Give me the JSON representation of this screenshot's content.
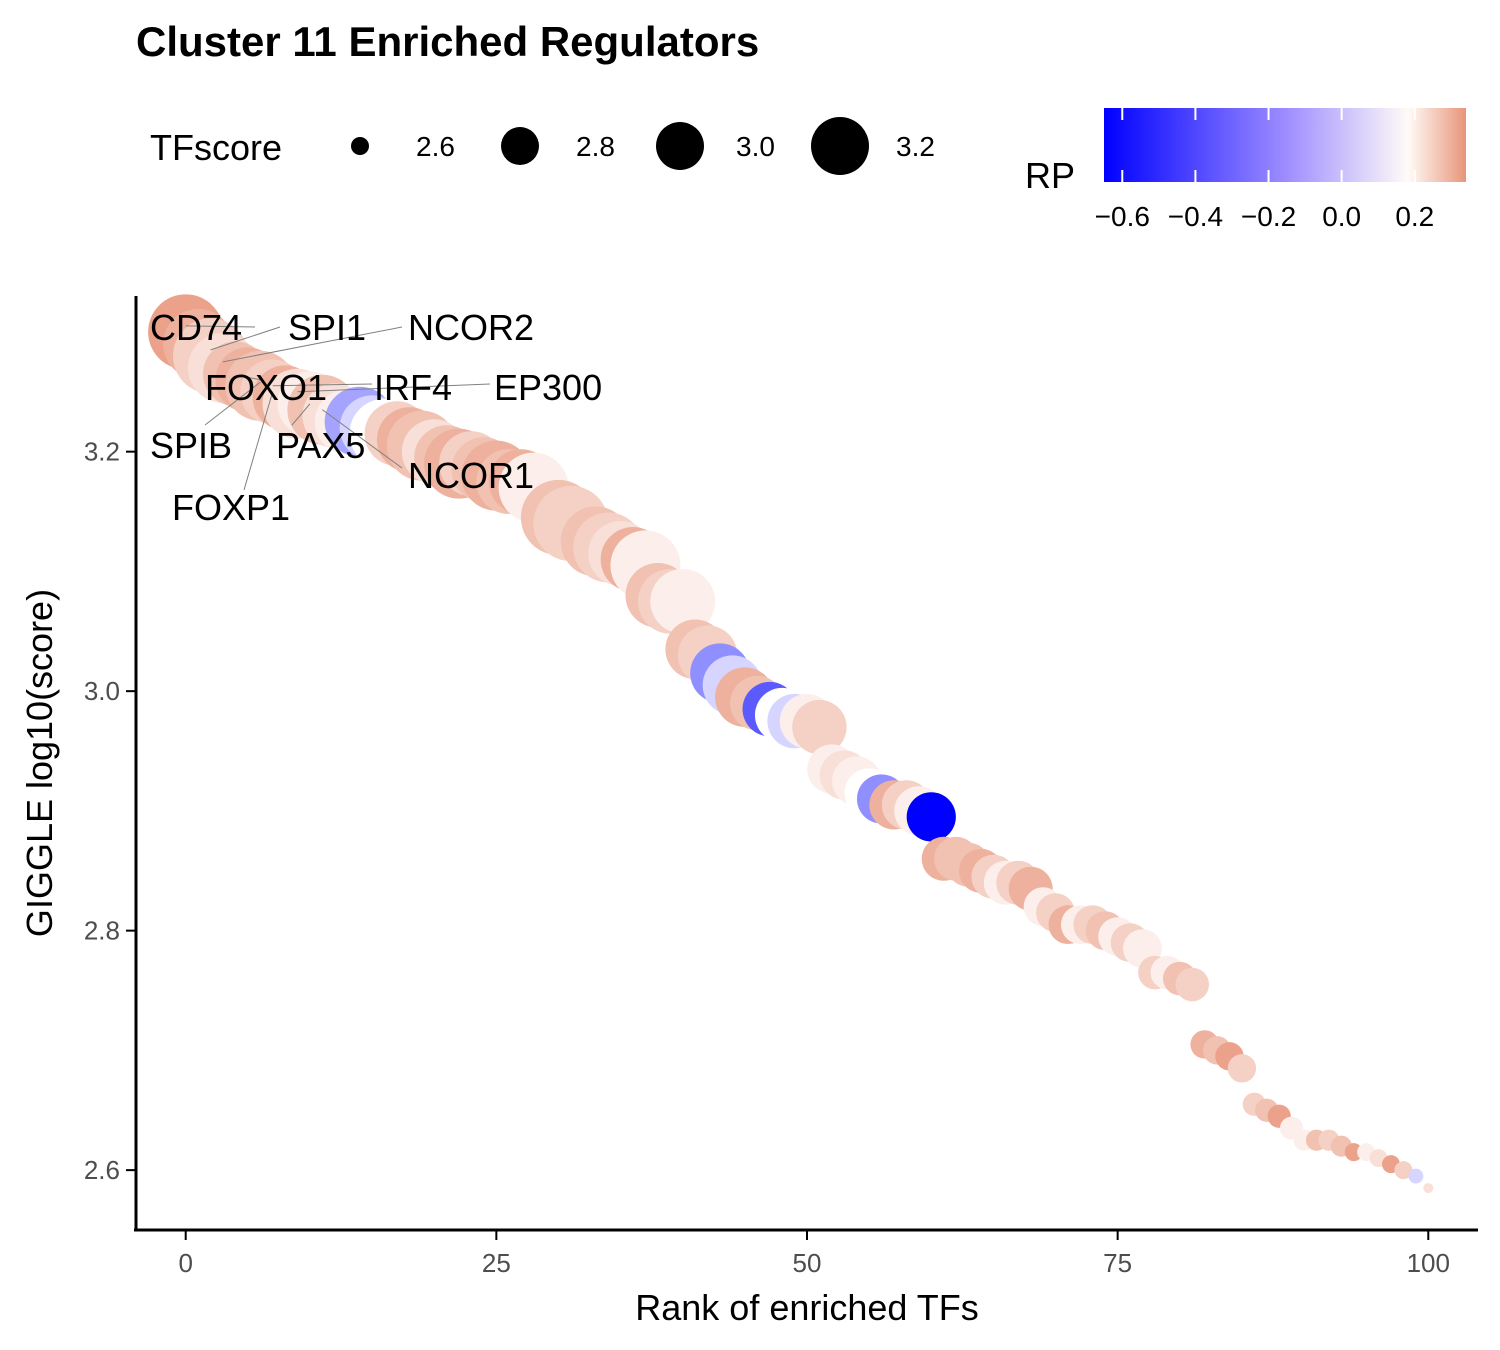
{
  "chart_data": {
    "type": "scatter",
    "title": "Cluster 11 Enriched Regulators",
    "xlabel": "Rank of enriched TFs",
    "ylabel": "GIGGLE log10(score)",
    "xlim": [
      -4,
      104
    ],
    "ylim": [
      2.55,
      3.33
    ],
    "xticks": [
      0,
      25,
      50,
      75,
      100
    ],
    "xtick_labels": [
      "0",
      "25",
      "50",
      "75",
      "100"
    ],
    "yticks": [
      2.6,
      2.8,
      3.0,
      3.2
    ],
    "ytick_labels": [
      "2.6",
      "2.8",
      "3.0",
      "3.2"
    ],
    "grid": false,
    "size_legend": {
      "title": "TFscore",
      "values": [
        2.6,
        2.8,
        3.0,
        3.2
      ],
      "labels": [
        "2.6",
        "2.8",
        "3.0",
        "3.2"
      ]
    },
    "color_legend": {
      "title": "RP",
      "range": [
        -0.65,
        0.34
      ],
      "ticks": [
        -0.6,
        -0.4,
        -0.2,
        0.0,
        0.2
      ],
      "tick_labels": [
        "−0.6",
        "−0.4",
        "−0.2",
        "0.0",
        "0.2"
      ],
      "low_color": "#0000ff",
      "mid_color": "#ffffff",
      "high_color": "#e8957a"
    },
    "points": [
      {
        "x": 0,
        "y": 3.3,
        "size": 3.1,
        "rp": 0.3
      },
      {
        "x": 1,
        "y": 3.29,
        "size": 3.05,
        "rp": 0.25
      },
      {
        "x": 2,
        "y": 3.28,
        "size": 3.1,
        "rp": 0.15
      },
      {
        "x": 3,
        "y": 3.27,
        "size": 3.05,
        "rp": 0.1
      },
      {
        "x": 4,
        "y": 3.265,
        "size": 3.0,
        "rp": 0.2
      },
      {
        "x": 5,
        "y": 3.26,
        "size": 3.0,
        "rp": 0.25
      },
      {
        "x": 6,
        "y": 3.255,
        "size": 3.05,
        "rp": 0.2
      },
      {
        "x": 7,
        "y": 3.25,
        "size": 3.0,
        "rp": 0.15
      },
      {
        "x": 8,
        "y": 3.245,
        "size": 3.0,
        "rp": 0.25
      },
      {
        "x": 9,
        "y": 3.24,
        "size": 3.05,
        "rp": 0.1
      },
      {
        "x": 10,
        "y": 3.24,
        "size": 3.0,
        "rp": 0.05
      },
      {
        "x": 11,
        "y": 3.235,
        "size": 3.05,
        "rp": 0.2
      },
      {
        "x": 12,
        "y": 3.23,
        "size": 3.0,
        "rp": 0.1
      },
      {
        "x": 13,
        "y": 3.225,
        "size": 3.0,
        "rp": 0.05
      },
      {
        "x": 14,
        "y": 3.225,
        "size": 3.05,
        "rp": -0.15
      },
      {
        "x": 15,
        "y": 3.22,
        "size": 3.0,
        "rp": -0.05
      },
      {
        "x": 16,
        "y": 3.215,
        "size": 3.05,
        "rp": 0.0
      },
      {
        "x": 17,
        "y": 3.215,
        "size": 3.0,
        "rp": 0.15
      },
      {
        "x": 18,
        "y": 3.21,
        "size": 3.0,
        "rp": 0.25
      },
      {
        "x": 19,
        "y": 3.205,
        "size": 3.05,
        "rp": 0.2
      },
      {
        "x": 20,
        "y": 3.2,
        "size": 3.0,
        "rp": 0.1
      },
      {
        "x": 21,
        "y": 3.195,
        "size": 3.0,
        "rp": 0.2
      },
      {
        "x": 22,
        "y": 3.19,
        "size": 3.05,
        "rp": 0.25
      },
      {
        "x": 23,
        "y": 3.19,
        "size": 3.0,
        "rp": 0.15
      },
      {
        "x": 24,
        "y": 3.185,
        "size": 3.0,
        "rp": 0.2
      },
      {
        "x": 25,
        "y": 3.18,
        "size": 3.05,
        "rp": 0.25
      },
      {
        "x": 26,
        "y": 3.175,
        "size": 3.0,
        "rp": 0.2
      },
      {
        "x": 27,
        "y": 3.175,
        "size": 3.0,
        "rp": 0.25
      },
      {
        "x": 28,
        "y": 3.17,
        "size": 3.05,
        "rp": 0.05
      },
      {
        "x": 30,
        "y": 3.145,
        "size": 3.1,
        "rp": 0.2
      },
      {
        "x": 31,
        "y": 3.14,
        "size": 3.1,
        "rp": 0.15
      },
      {
        "x": 33,
        "y": 3.125,
        "size": 3.05,
        "rp": 0.2
      },
      {
        "x": 34,
        "y": 3.12,
        "size": 3.05,
        "rp": 0.15
      },
      {
        "x": 35,
        "y": 3.115,
        "size": 3.0,
        "rp": 0.1
      },
      {
        "x": 36,
        "y": 3.11,
        "size": 3.0,
        "rp": 0.25
      },
      {
        "x": 37,
        "y": 3.105,
        "size": 3.05,
        "rp": 0.05
      },
      {
        "x": 38,
        "y": 3.08,
        "size": 3.0,
        "rp": 0.2
      },
      {
        "x": 39,
        "y": 3.075,
        "size": 3.0,
        "rp": 0.15
      },
      {
        "x": 40,
        "y": 3.075,
        "size": 3.0,
        "rp": 0.05
      },
      {
        "x": 41,
        "y": 3.035,
        "size": 2.95,
        "rp": 0.2
      },
      {
        "x": 42,
        "y": 3.03,
        "size": 2.95,
        "rp": 0.15
      },
      {
        "x": 43,
        "y": 3.015,
        "size": 2.95,
        "rp": -0.2
      },
      {
        "x": 44,
        "y": 3.005,
        "size": 2.95,
        "rp": -0.05
      },
      {
        "x": 45,
        "y": 2.995,
        "size": 2.95,
        "rp": 0.25
      },
      {
        "x": 46,
        "y": 2.99,
        "size": 2.9,
        "rp": 0.2
      },
      {
        "x": 47,
        "y": 2.985,
        "size": 2.9,
        "rp": -0.35
      },
      {
        "x": 48,
        "y": 2.98,
        "size": 2.9,
        "rp": 0.0
      },
      {
        "x": 49,
        "y": 2.975,
        "size": 2.9,
        "rp": -0.05
      },
      {
        "x": 50,
        "y": 2.975,
        "size": 2.9,
        "rp": 0.05
      },
      {
        "x": 51,
        "y": 2.97,
        "size": 2.9,
        "rp": 0.15
      },
      {
        "x": 52,
        "y": 2.935,
        "size": 2.85,
        "rp": 0.05
      },
      {
        "x": 53,
        "y": 2.93,
        "size": 2.85,
        "rp": 0.1
      },
      {
        "x": 54,
        "y": 2.925,
        "size": 2.85,
        "rp": 0.05
      },
      {
        "x": 55,
        "y": 2.915,
        "size": 2.85,
        "rp": 0.0
      },
      {
        "x": 56,
        "y": 2.91,
        "size": 2.85,
        "rp": -0.2
      },
      {
        "x": 57,
        "y": 2.905,
        "size": 2.85,
        "rp": 0.25
      },
      {
        "x": 58,
        "y": 2.905,
        "size": 2.85,
        "rp": 0.15
      },
      {
        "x": 59,
        "y": 2.9,
        "size": 2.85,
        "rp": 0.05
      },
      {
        "x": 60,
        "y": 2.895,
        "size": 2.85,
        "rp": -0.65
      },
      {
        "x": 61,
        "y": 2.86,
        "size": 2.8,
        "rp": 0.25
      },
      {
        "x": 62,
        "y": 2.86,
        "size": 2.8,
        "rp": 0.2
      },
      {
        "x": 63,
        "y": 2.855,
        "size": 2.8,
        "rp": 0.2
      },
      {
        "x": 64,
        "y": 2.85,
        "size": 2.8,
        "rp": 0.25
      },
      {
        "x": 65,
        "y": 2.845,
        "size": 2.8,
        "rp": 0.15
      },
      {
        "x": 66,
        "y": 2.84,
        "size": 2.8,
        "rp": 0.05
      },
      {
        "x": 67,
        "y": 2.84,
        "size": 2.8,
        "rp": 0.15
      },
      {
        "x": 68,
        "y": 2.835,
        "size": 2.8,
        "rp": 0.25
      },
      {
        "x": 69,
        "y": 2.82,
        "size": 2.75,
        "rp": 0.05
      },
      {
        "x": 70,
        "y": 2.815,
        "size": 2.75,
        "rp": 0.15
      },
      {
        "x": 71,
        "y": 2.805,
        "size": 2.75,
        "rp": 0.25
      },
      {
        "x": 72,
        "y": 2.805,
        "size": 2.75,
        "rp": 0.05
      },
      {
        "x": 73,
        "y": 2.805,
        "size": 2.75,
        "rp": 0.15
      },
      {
        "x": 74,
        "y": 2.8,
        "size": 2.75,
        "rp": 0.2
      },
      {
        "x": 75,
        "y": 2.795,
        "size": 2.75,
        "rp": 0.05
      },
      {
        "x": 76,
        "y": 2.79,
        "size": 2.75,
        "rp": 0.15
      },
      {
        "x": 77,
        "y": 2.785,
        "size": 2.75,
        "rp": 0.05
      },
      {
        "x": 78,
        "y": 2.765,
        "size": 2.7,
        "rp": 0.15
      },
      {
        "x": 79,
        "y": 2.765,
        "size": 2.7,
        "rp": 0.05
      },
      {
        "x": 80,
        "y": 2.76,
        "size": 2.7,
        "rp": 0.2
      },
      {
        "x": 81,
        "y": 2.755,
        "size": 2.7,
        "rp": 0.15
      },
      {
        "x": 82,
        "y": 2.705,
        "size": 2.65,
        "rp": 0.25
      },
      {
        "x": 83,
        "y": 2.7,
        "size": 2.65,
        "rp": 0.2
      },
      {
        "x": 84,
        "y": 2.695,
        "size": 2.65,
        "rp": 0.3
      },
      {
        "x": 85,
        "y": 2.685,
        "size": 2.65,
        "rp": 0.15
      },
      {
        "x": 86,
        "y": 2.655,
        "size": 2.6,
        "rp": 0.15
      },
      {
        "x": 87,
        "y": 2.65,
        "size": 2.6,
        "rp": 0.2
      },
      {
        "x": 88,
        "y": 2.645,
        "size": 2.6,
        "rp": 0.3
      },
      {
        "x": 89,
        "y": 2.635,
        "size": 2.6,
        "rp": 0.05
      },
      {
        "x": 90,
        "y": 2.625,
        "size": 2.58,
        "rp": 0.05
      },
      {
        "x": 91,
        "y": 2.625,
        "size": 2.58,
        "rp": 0.2
      },
      {
        "x": 92,
        "y": 2.625,
        "size": 2.58,
        "rp": 0.15
      },
      {
        "x": 93,
        "y": 2.62,
        "size": 2.58,
        "rp": 0.2
      },
      {
        "x": 94,
        "y": 2.615,
        "size": 2.55,
        "rp": 0.3
      },
      {
        "x": 95,
        "y": 2.615,
        "size": 2.55,
        "rp": 0.05
      },
      {
        "x": 96,
        "y": 2.61,
        "size": 2.55,
        "rp": 0.1
      },
      {
        "x": 97,
        "y": 2.605,
        "size": 2.55,
        "rp": 0.3
      },
      {
        "x": 98,
        "y": 2.6,
        "size": 2.55,
        "rp": 0.15
      },
      {
        "x": 99,
        "y": 2.595,
        "size": 2.52,
        "rp": -0.05
      },
      {
        "x": 100,
        "y": 2.585,
        "size": 2.45,
        "rp": 0.1
      }
    ],
    "annotations": [
      {
        "label": "CD74",
        "x": 0,
        "y": 3.305
      },
      {
        "label": "SPI1",
        "x": 2,
        "y": 3.285
      },
      {
        "label": "NCOR2",
        "x": 3,
        "y": 3.275
      },
      {
        "label": "FOXO1",
        "x": 5,
        "y": 3.262
      },
      {
        "label": "IRF4",
        "x": 7,
        "y": 3.255
      },
      {
        "label": "EP300",
        "x": 9,
        "y": 3.25
      },
      {
        "label": "SPIB",
        "x": 6,
        "y": 3.258
      },
      {
        "label": "PAX5",
        "x": 10,
        "y": 3.24
      },
      {
        "label": "NCOR1",
        "x": 11,
        "y": 3.235
      },
      {
        "label": "FOXP1",
        "x": 7,
        "y": 3.25
      }
    ]
  }
}
